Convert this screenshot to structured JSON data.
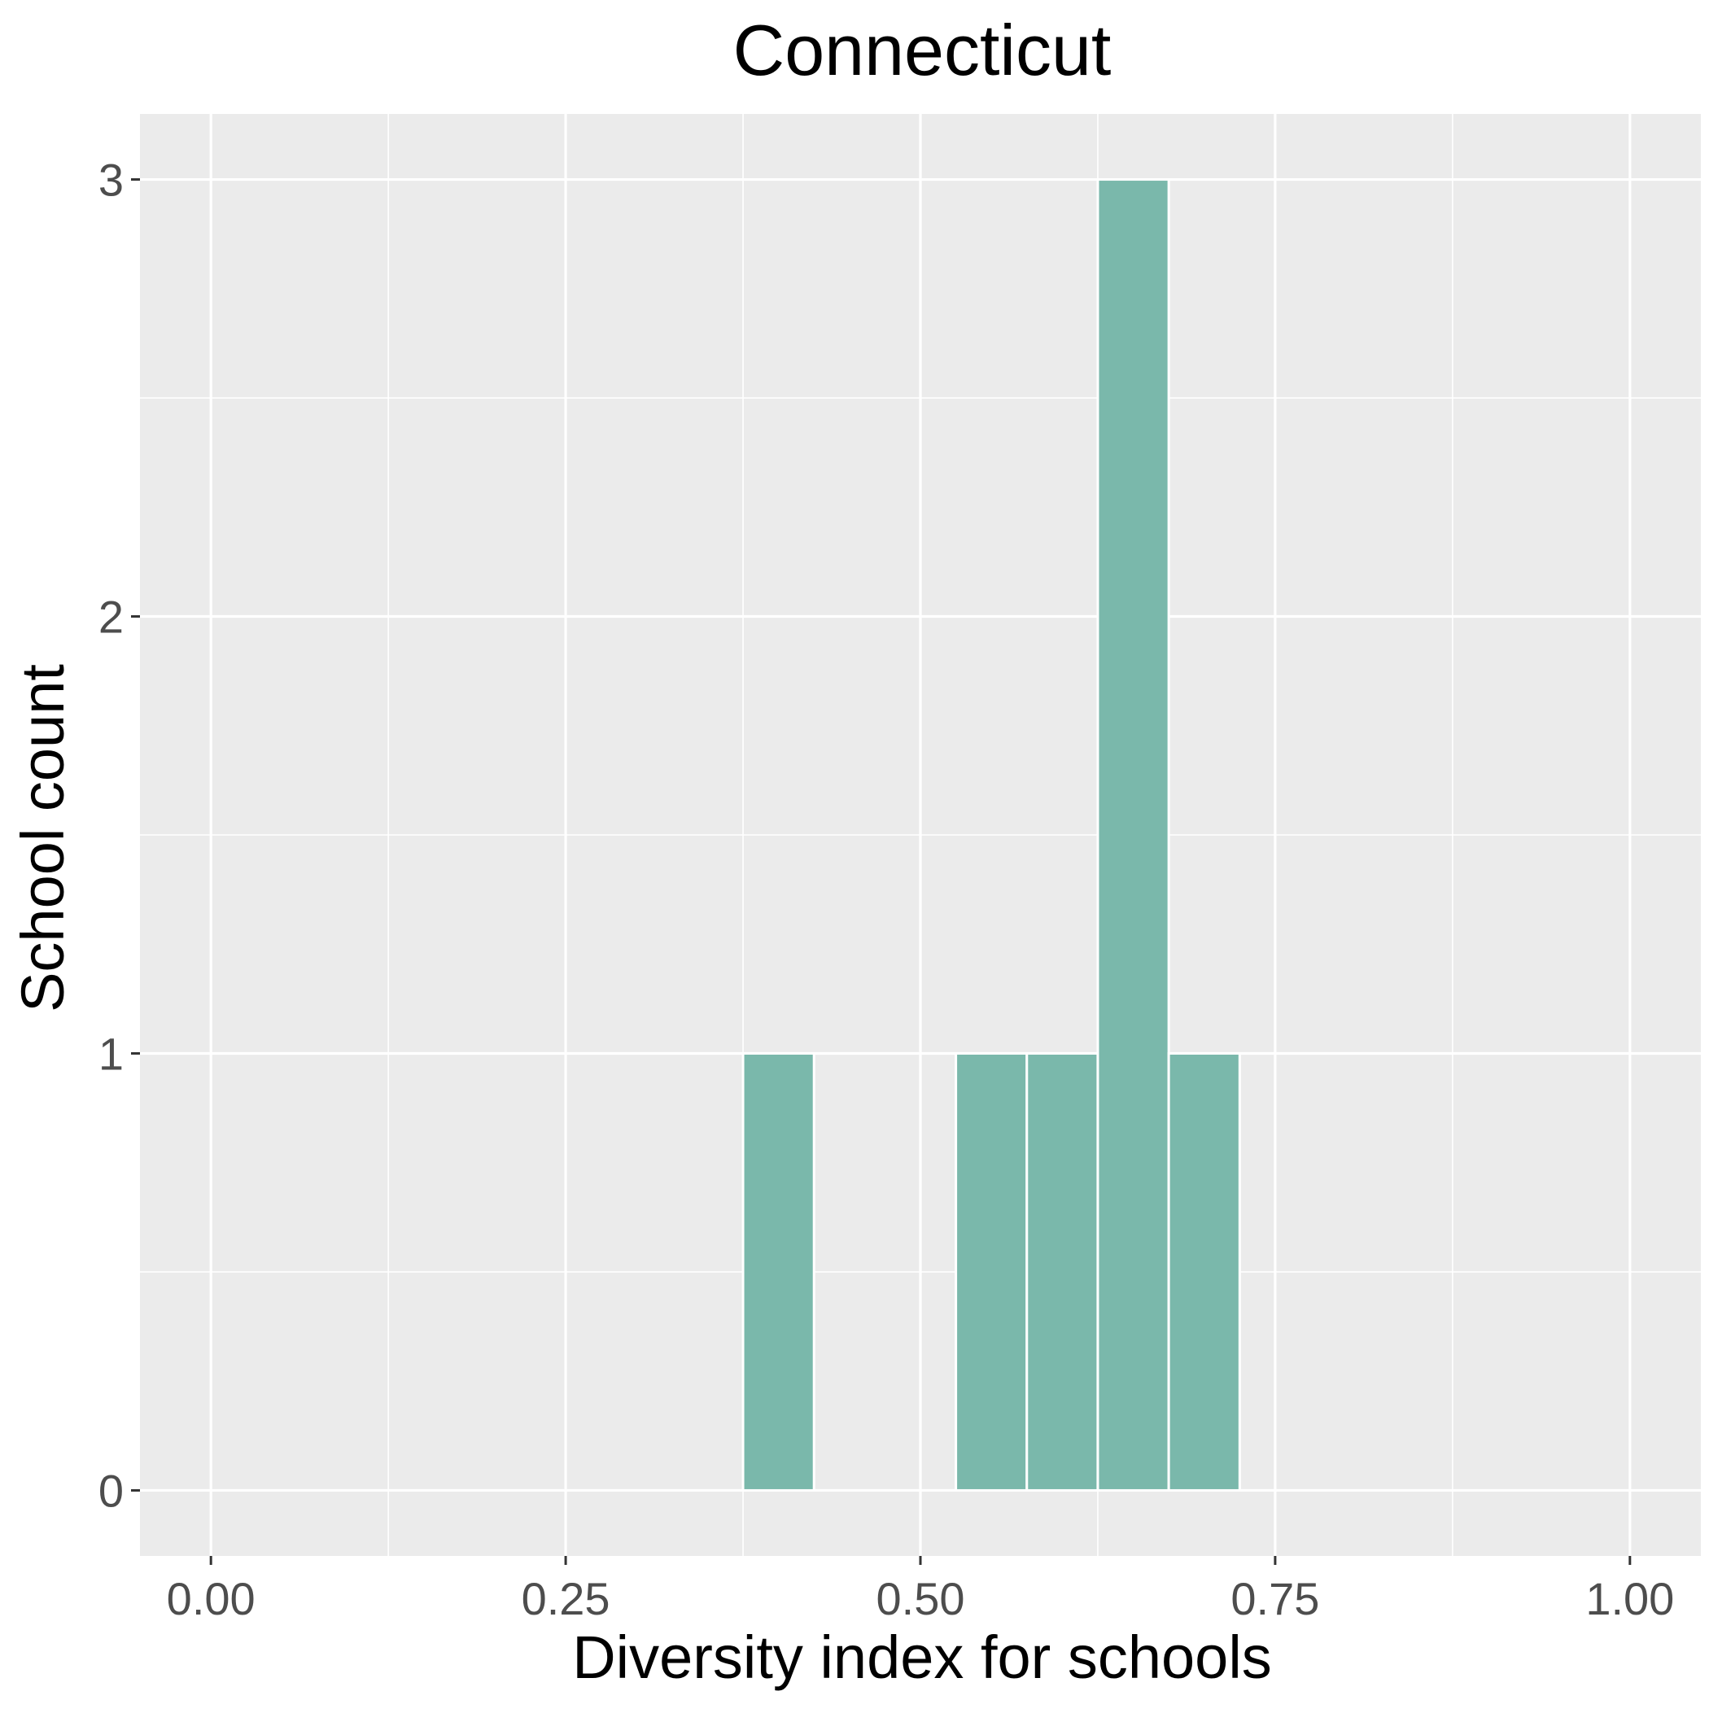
{
  "chart_data": {
    "type": "bar",
    "title": "Connecticut",
    "xlabel": "Diversity index for schools",
    "ylabel": "School count",
    "xlim": [
      -0.05,
      1.05
    ],
    "ylim": [
      -0.15,
      3.15
    ],
    "x_ticks": [
      0.0,
      0.25,
      0.5,
      0.75,
      1.0
    ],
    "x_tick_labels": [
      "0.00",
      "0.25",
      "0.50",
      "0.75",
      "1.00"
    ],
    "y_ticks": [
      0,
      1,
      2,
      3
    ],
    "y_tick_labels": [
      "0",
      "1",
      "2",
      "3"
    ],
    "bin_width": 0.05,
    "bins": [
      {
        "x": 0.4,
        "count": 1
      },
      {
        "x": 0.55,
        "count": 1
      },
      {
        "x": 0.6,
        "count": 1
      },
      {
        "x": 0.65,
        "count": 3
      },
      {
        "x": 0.7,
        "count": 1
      }
    ],
    "zero_segments": [
      [
        0.0,
        0.375
      ],
      [
        0.425,
        0.525
      ],
      [
        0.725,
        1.0
      ]
    ],
    "grid": true,
    "legend": "none",
    "colors": {
      "bar": "#7ab8ab",
      "panel": "#ebebeb",
      "grid": "#ffffff"
    }
  }
}
